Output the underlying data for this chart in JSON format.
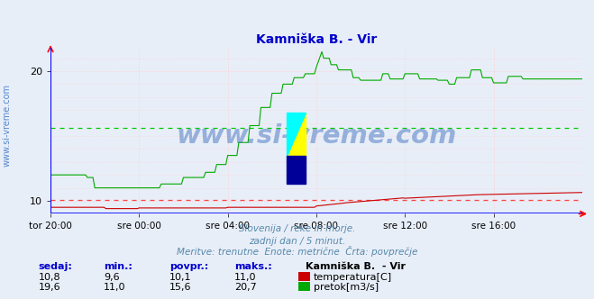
{
  "title": "Kamniška B. - Vir",
  "title_color": "#0000cc",
  "bg_color": "#e8eef8",
  "plot_bg_color": "#e8eef8",
  "watermark": "www.si-vreme.com",
  "watermark_color": "#3366bb",
  "watermark_alpha": 0.45,
  "side_text": "www.si-vreme.com",
  "side_text_color": "#5588cc",
  "xlabel_ticks": [
    "tor 20:00",
    "sre 00:00",
    "sre 04:00",
    "sre 08:00",
    "sre 12:00",
    "sre 16:00"
  ],
  "yticks": [
    10,
    20
  ],
  "temp_color": "#cc0000",
  "flow_color": "#00aa00",
  "temp_avg": 10.1,
  "flow_avg": 15.6,
  "grid_color_v": "#ffcccc",
  "grid_color_h": "#ffcccc",
  "dashed_color_red": "#ff4444",
  "dashed_color_green": "#00cc00",
  "blue_line_color": "#0000ff",
  "subtitle_lines": [
    "Slovenija / reke in morje.",
    "zadnji dan / 5 minut.",
    "Meritve: trenutne  Enote: metrične  Črta: povprečje"
  ],
  "subtitle_color": "#5588aa",
  "table_headers": [
    "sedaj:",
    "min.:",
    "povpr.:",
    "maks.:"
  ],
  "table_header_color": "#0000cc",
  "table_rows": [
    {
      "values": [
        "10,8",
        "9,6",
        "10,1",
        "11,0"
      ],
      "label": "temperatura[C]",
      "color": "#cc0000"
    },
    {
      "values": [
        "19,6",
        "11,0",
        "15,6",
        "20,7"
      ],
      "label": "pretok[m3/s]",
      "color": "#00aa00"
    }
  ],
  "table_color": "#000000",
  "station_label": "Kamniška B.  - Vir",
  "station_label_color": "#000000",
  "n_points": 289,
  "tick_positions": [
    0,
    48,
    96,
    144,
    192,
    240
  ],
  "y_min": 9.0,
  "y_max": 21.8
}
